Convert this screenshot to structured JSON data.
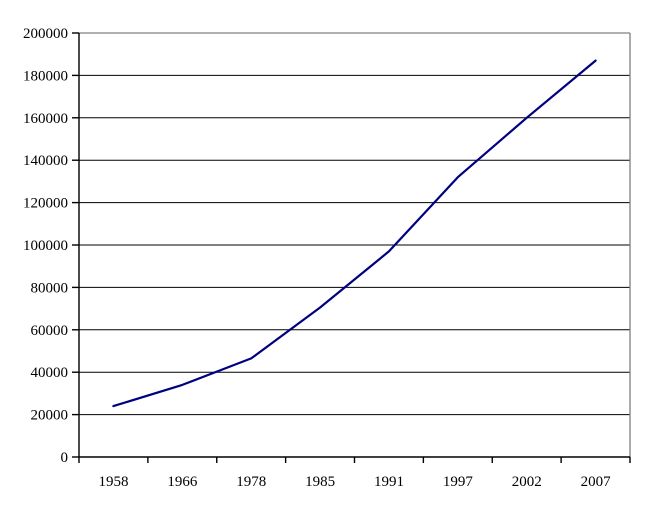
{
  "chart_data": {
    "type": "line",
    "title": "",
    "xlabel": "",
    "ylabel": "",
    "categories": [
      "1958",
      "1966",
      "1978",
      "1985",
      "1991",
      "1997",
      "2002",
      "2007"
    ],
    "series": [
      {
        "name": "",
        "values": [
          24000,
          34000,
          46500,
          70500,
          97000,
          132000,
          160000,
          187000
        ]
      }
    ],
    "ylim": [
      0,
      200000
    ],
    "ytick_step": 20000,
    "ytick_labels": [
      "0",
      "20000",
      "40000",
      "60000",
      "80000",
      "100000",
      "120000",
      "140000",
      "160000",
      "180000",
      "200000"
    ],
    "grid": "horizontal",
    "legend": "none",
    "colors": {
      "line": "#000080",
      "gridline": "#000000",
      "plot_border": "#808080",
      "axis": "#000000",
      "text": "#000000",
      "background": "#ffffff"
    }
  }
}
